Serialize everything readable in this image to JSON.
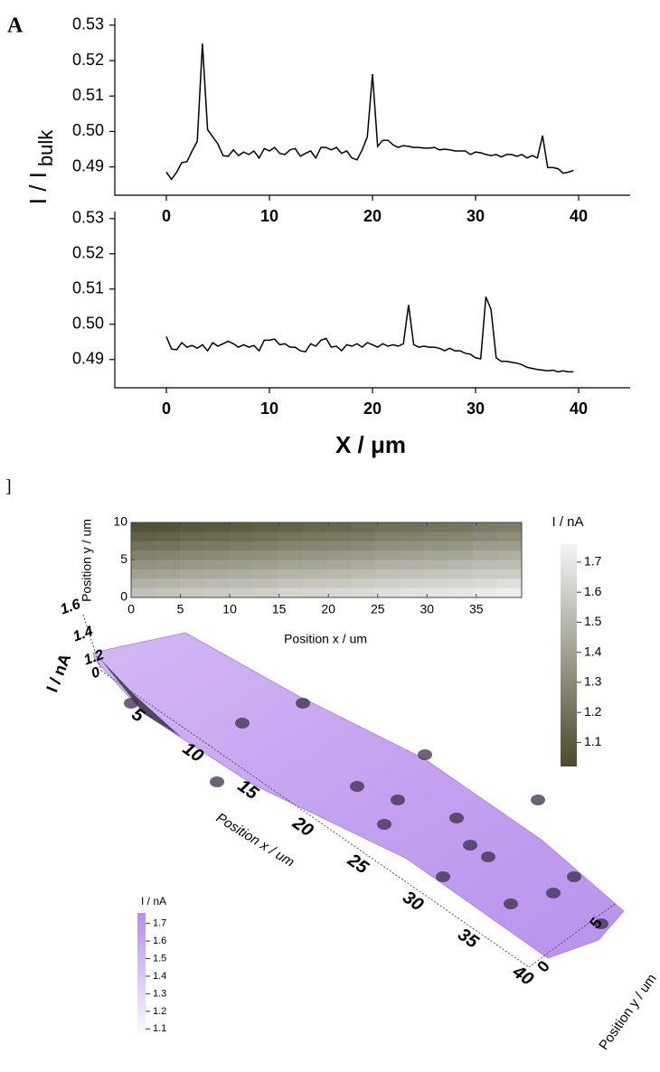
{
  "chart_data": [
    {
      "type": "line",
      "panel_label": "A",
      "ylabel": "I / I",
      "ylabel_sub": "bulk",
      "x": [
        0,
        0.5,
        1,
        1.5,
        2,
        2.5,
        3,
        3.5,
        4,
        4.5,
        5,
        5.5,
        6,
        6.5,
        7,
        7.5,
        8,
        8.5,
        9,
        9.5,
        10,
        10.5,
        11,
        11.5,
        12,
        12.5,
        13,
        13.5,
        14,
        14.5,
        15,
        15.5,
        16,
        16.5,
        17,
        17.5,
        18,
        18.5,
        19,
        19.5,
        20,
        20.5,
        21,
        21.5,
        22,
        22.5,
        23,
        23.5,
        24,
        24.5,
        25,
        25.5,
        26,
        26.5,
        27,
        27.5,
        28,
        28.5,
        29,
        29.5,
        30,
        30.5,
        31,
        31.5,
        32,
        32.5,
        33,
        33.5,
        34,
        34.5,
        35,
        35.5,
        36,
        36.5,
        37,
        37.5,
        38,
        38.5,
        39,
        39.5
      ],
      "values": [
        0.4885,
        0.4865,
        0.4885,
        0.4912,
        0.4915,
        0.4945,
        0.4972,
        0.5248,
        0.5005,
        0.4985,
        0.4965,
        0.4932,
        0.493,
        0.4948,
        0.4932,
        0.4942,
        0.4935,
        0.4945,
        0.4925,
        0.4952,
        0.4945,
        0.4955,
        0.4938,
        0.4935,
        0.4948,
        0.4952,
        0.493,
        0.4938,
        0.4945,
        0.4925,
        0.4955,
        0.4955,
        0.4948,
        0.4955,
        0.4938,
        0.4945,
        0.4925,
        0.492,
        0.4948,
        0.4985,
        0.5162,
        0.4958,
        0.4975,
        0.4975,
        0.4962,
        0.4955,
        0.496,
        0.4958,
        0.4955,
        0.4955,
        0.4953,
        0.4953,
        0.4955,
        0.4948,
        0.495,
        0.4948,
        0.4945,
        0.4945,
        0.4945,
        0.4935,
        0.4942,
        0.494,
        0.4935,
        0.4932,
        0.4935,
        0.4928,
        0.4935,
        0.4935,
        0.493,
        0.4935,
        0.4925,
        0.4932,
        0.4925,
        0.4988,
        0.4898,
        0.4898,
        0.4895,
        0.4882,
        0.4885,
        0.489
      ],
      "color": "#000000",
      "xlim": [
        -5,
        45
      ],
      "ylim": [
        0.482,
        0.532
      ],
      "xticks": [
        0,
        10,
        20,
        30,
        40
      ],
      "yticks": [
        0.49,
        {
          "value": 0.5,
          "label": "0.50"
        },
        0.51,
        0.52,
        0.53
      ]
    },
    {
      "type": "line",
      "xlabel": "X / μm",
      "x": [
        0,
        0.5,
        1,
        1.5,
        2,
        2.5,
        3,
        3.5,
        4,
        4.5,
        5,
        5.5,
        6,
        6.5,
        7,
        7.5,
        8,
        8.5,
        9,
        9.5,
        10,
        10.5,
        11,
        11.5,
        12,
        12.5,
        13,
        13.5,
        14,
        14.5,
        15,
        15.5,
        16,
        16.5,
        17,
        17.5,
        18,
        18.5,
        19,
        19.5,
        20,
        20.5,
        21,
        21.5,
        22,
        22.5,
        23,
        23.5,
        24,
        24.5,
        25,
        25.5,
        26,
        26.5,
        27,
        27.5,
        28,
        28.5,
        29,
        29.5,
        30,
        30.5,
        31,
        31.5,
        32,
        32.5,
        33,
        33.5,
        34,
        34.5,
        35,
        35.5,
        36,
        36.5,
        37,
        37.5,
        38,
        38.5,
        39,
        39.5
      ],
      "values": [
        0.4965,
        0.493,
        0.4928,
        0.4948,
        0.4935,
        0.494,
        0.4932,
        0.4942,
        0.4925,
        0.4948,
        0.4938,
        0.4945,
        0.4952,
        0.4945,
        0.4935,
        0.4942,
        0.4935,
        0.494,
        0.4925,
        0.4955,
        0.4955,
        0.4958,
        0.4942,
        0.4945,
        0.4935,
        0.4935,
        0.4925,
        0.4922,
        0.4945,
        0.4938,
        0.4955,
        0.496,
        0.4935,
        0.4938,
        0.4925,
        0.4942,
        0.4938,
        0.4945,
        0.4935,
        0.4948,
        0.4942,
        0.4935,
        0.4945,
        0.4938,
        0.4942,
        0.4938,
        0.4945,
        0.5055,
        0.4942,
        0.4935,
        0.4938,
        0.4935,
        0.4935,
        0.4932,
        0.4925,
        0.4932,
        0.4925,
        0.4925,
        0.4918,
        0.4915,
        0.4905,
        0.4902,
        0.5078,
        0.5042,
        0.4905,
        0.4895,
        0.4895,
        0.4892,
        0.489,
        0.4885,
        0.4878,
        0.4875,
        0.4872,
        0.487,
        0.4868,
        0.487,
        0.4865,
        0.4868,
        0.4865,
        0.4865
      ],
      "color": "#000000",
      "xlim": [
        -5,
        45
      ],
      "ylim": [
        0.482,
        0.532
      ],
      "xticks": [
        0,
        10,
        20,
        30,
        40
      ],
      "yticks": [
        0.49,
        {
          "value": 0.5,
          "label": "0.50"
        },
        0.51,
        0.52,
        0.53
      ]
    },
    {
      "type": "heatmap",
      "panel_label": "]",
      "xlabel": "Position x / um",
      "ylabel": "Position y / um",
      "xlim": [
        0,
        39.6
      ],
      "ylim": [
        0,
        10
      ],
      "xticks": [
        0,
        5,
        10,
        15,
        20,
        25,
        30,
        35
      ],
      "yticks": [
        0,
        5,
        10
      ],
      "z": [
        [
          1.05,
          1.06,
          1.08,
          1.09,
          1.1,
          1.11,
          1.13,
          1.14,
          1.15,
          1.16,
          1.18,
          1.19,
          1.2,
          1.21,
          1.23,
          1.24
        ],
        [
          1.12,
          1.13,
          1.15,
          1.16,
          1.17,
          1.18,
          1.2,
          1.21,
          1.22,
          1.23,
          1.25,
          1.26,
          1.27,
          1.28,
          1.3,
          1.31
        ],
        [
          1.19,
          1.2,
          1.22,
          1.23,
          1.24,
          1.25,
          1.27,
          1.28,
          1.29,
          1.3,
          1.32,
          1.33,
          1.34,
          1.35,
          1.37,
          1.38
        ],
        [
          1.26,
          1.27,
          1.29,
          1.3,
          1.31,
          1.32,
          1.34,
          1.35,
          1.36,
          1.37,
          1.39,
          1.4,
          1.41,
          1.42,
          1.44,
          1.45
        ],
        [
          1.33,
          1.34,
          1.36,
          1.37,
          1.38,
          1.39,
          1.41,
          1.42,
          1.43,
          1.44,
          1.46,
          1.47,
          1.48,
          1.49,
          1.51,
          1.52
        ],
        [
          1.4,
          1.41,
          1.43,
          1.44,
          1.45,
          1.46,
          1.48,
          1.49,
          1.5,
          1.51,
          1.53,
          1.54,
          1.55,
          1.56,
          1.58,
          1.59
        ],
        [
          1.47,
          1.48,
          1.5,
          1.51,
          1.52,
          1.53,
          1.55,
          1.56,
          1.57,
          1.58,
          1.6,
          1.61,
          1.62,
          1.63,
          1.65,
          1.66
        ],
        [
          1.54,
          1.55,
          1.57,
          1.58,
          1.59,
          1.6,
          1.62,
          1.63,
          1.64,
          1.65,
          1.67,
          1.68,
          1.69,
          1.7,
          1.72,
          1.73
        ]
      ],
      "colormap": [
        "#4b4a2c",
        "#f4f4f4"
      ],
      "colorbar": {
        "title": "I / nA",
        "lim": [
          1.02,
          1.76
        ],
        "ticks": [
          1.1,
          1.2,
          1.3,
          1.4,
          1.5,
          1.6,
          1.7
        ]
      }
    },
    {
      "type": "surface",
      "xlabel": "Position x / um",
      "ylabel": "Position y / um",
      "zlabel": "I / nA",
      "xticks": [
        5,
        10,
        15,
        20,
        25,
        30,
        35,
        40
      ],
      "yticks": [
        0,
        5
      ],
      "zticks": [
        0,
        1.2,
        1.4,
        1.6
      ],
      "colormap": [
        "#ffffff",
        "#b48ef0"
      ],
      "colorbar": {
        "title": "I / nA",
        "lim": [
          1.04,
          1.76
        ],
        "ticks": [
          1.1,
          1.2,
          1.3,
          1.4,
          1.5,
          1.6,
          1.7
        ]
      }
    }
  ]
}
